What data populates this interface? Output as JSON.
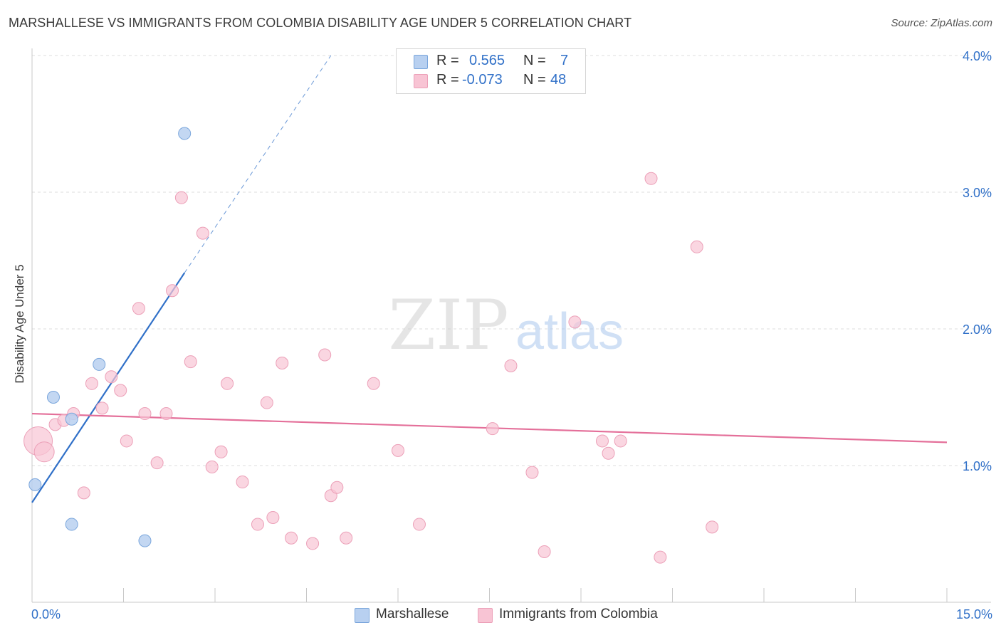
{
  "header": {
    "title": "MARSHALLESE VS IMMIGRANTS FROM COLOMBIA DISABILITY AGE UNDER 5 CORRELATION CHART",
    "source": "Source: ZipAtlas.com"
  },
  "watermark": {
    "zip": "ZIP",
    "atlas": "atlas"
  },
  "legend": {
    "series1": {
      "r_label": "R =",
      "r_value": "0.565",
      "n_label": "N =",
      "n_value": "7"
    },
    "series2": {
      "r_label": "R =",
      "r_value": "-0.073",
      "n_label": "N =",
      "n_value": "48"
    }
  },
  "colors": {
    "marshallese_fill": "#b8d0f0",
    "marshallese_stroke": "#7aa6dc",
    "marshallese_line": "#3070c8",
    "colombia_fill": "#f8c4d4",
    "colombia_stroke": "#eca0b8",
    "colombia_line": "#e4709a",
    "tick_label": "#3070c8",
    "grid": "#dddddd"
  },
  "chart_data": {
    "type": "scatter",
    "title": "MARSHALLESE VS IMMIGRANTS FROM COLOMBIA DISABILITY AGE UNDER 5 CORRELATION CHART",
    "xlabel": "",
    "ylabel": "Disability Age Under 5",
    "xlim": [
      0,
      15
    ],
    "ylim": [
      0,
      4.1
    ],
    "x_tick_labels": [
      "0.0%",
      "15.0%"
    ],
    "y_ticks": [
      1,
      2,
      3,
      4
    ],
    "y_tick_labels": [
      "1.0%",
      "2.0%",
      "3.0%",
      "4.0%"
    ],
    "grid": true,
    "legend_placement": "top-center and bottom",
    "series": [
      {
        "name": "Marshallese",
        "points": [
          [
            0.05,
            0.86
          ],
          [
            0.35,
            1.5
          ],
          [
            0.65,
            1.34
          ],
          [
            0.65,
            0.57
          ],
          [
            1.1,
            1.74
          ],
          [
            1.85,
            0.45
          ],
          [
            2.5,
            3.43
          ]
        ],
        "trend": {
          "x": [
            0.0,
            2.5
          ],
          "y": [
            0.73,
            2.41
          ],
          "extend_dashed_to": [
            4.9,
            4.0
          ]
        }
      },
      {
        "name": "Immigrants from Colombia",
        "points": [
          [
            0.1,
            1.18
          ],
          [
            0.2,
            1.1
          ],
          [
            0.38,
            1.3
          ],
          [
            0.52,
            1.33
          ],
          [
            0.68,
            1.38
          ],
          [
            0.85,
            0.8
          ],
          [
            0.98,
            1.6
          ],
          [
            1.15,
            1.42
          ],
          [
            1.3,
            1.65
          ],
          [
            1.45,
            1.55
          ],
          [
            1.55,
            1.18
          ],
          [
            1.75,
            2.15
          ],
          [
            1.85,
            1.38
          ],
          [
            2.05,
            1.02
          ],
          [
            2.2,
            1.38
          ],
          [
            2.3,
            2.28
          ],
          [
            2.45,
            2.96
          ],
          [
            2.6,
            1.76
          ],
          [
            2.8,
            2.7
          ],
          [
            2.95,
            0.99
          ],
          [
            3.1,
            1.1
          ],
          [
            3.2,
            1.6
          ],
          [
            3.45,
            0.88
          ],
          [
            3.7,
            0.57
          ],
          [
            3.85,
            1.46
          ],
          [
            3.95,
            0.62
          ],
          [
            4.1,
            1.75
          ],
          [
            4.25,
            0.47
          ],
          [
            4.6,
            0.43
          ],
          [
            4.8,
            1.81
          ],
          [
            4.9,
            0.78
          ],
          [
            5.0,
            0.84
          ],
          [
            5.15,
            0.47
          ],
          [
            5.6,
            1.6
          ],
          [
            6.0,
            1.11
          ],
          [
            6.35,
            0.57
          ],
          [
            7.55,
            1.27
          ],
          [
            7.85,
            1.73
          ],
          [
            8.2,
            0.95
          ],
          [
            8.4,
            0.37
          ],
          [
            8.9,
            2.05
          ],
          [
            9.35,
            1.18
          ],
          [
            9.45,
            1.09
          ],
          [
            9.65,
            1.18
          ],
          [
            10.15,
            3.1
          ],
          [
            10.3,
            0.33
          ],
          [
            10.9,
            2.6
          ],
          [
            11.15,
            0.55
          ]
        ],
        "trend": {
          "x": [
            0.0,
            15.0
          ],
          "y": [
            1.38,
            1.17
          ]
        }
      }
    ]
  },
  "bottom_legend": {
    "items": [
      {
        "label": "Marshallese"
      },
      {
        "label": "Immigrants from Colombia"
      }
    ]
  }
}
